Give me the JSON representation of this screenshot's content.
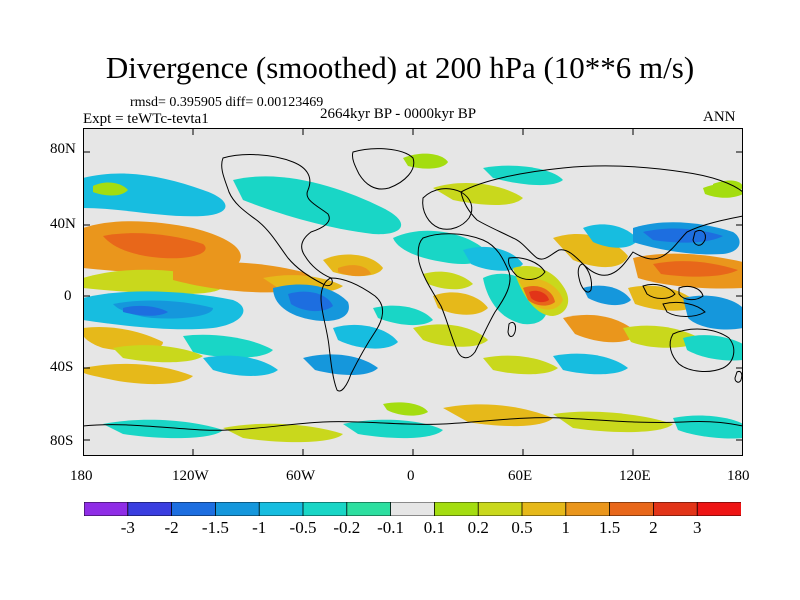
{
  "title": "Divergence (smoothed) at 200 hPa (10**6 m/s)",
  "stats_line": "rmsd= 0.395905  diff= 0.00123469",
  "experiment": "Expt = teWTc-tevta1",
  "period": "2664kyr BP - 0000kyr BP",
  "season": "ANN",
  "lat_labels": [
    "80N",
    "40N",
    "0",
    "40S",
    "80S"
  ],
  "lon_labels": [
    "180",
    "120W",
    "60W",
    "0",
    "60E",
    "120E",
    "180"
  ],
  "colorbar": {
    "labels": [
      "-3",
      "-2",
      "-1.5",
      "-1",
      "-0.5",
      "-0.2",
      "-0.1",
      "0.1",
      "0.2",
      "0.5",
      "1",
      "1.5",
      "2",
      "3"
    ],
    "colors": [
      "#8f2de6",
      "#3a3ee0",
      "#1d6ee0",
      "#1597dc",
      "#17bde0",
      "#19d6c6",
      "#2ddfa0",
      "#e6e6e6",
      "#a4dd10",
      "#c9d81c",
      "#e6b91a",
      "#ea961c",
      "#e8671a",
      "#e23418",
      "#ee1414"
    ]
  },
  "colors": {
    "ocean_land_background": "#e6e6e6",
    "coast": "#000000"
  }
}
